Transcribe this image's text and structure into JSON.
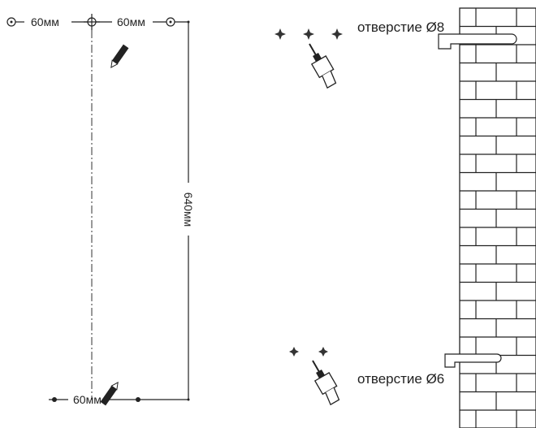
{
  "dimensions": {
    "top_left": "60мм",
    "top_right": "60мм",
    "height": "640мм",
    "bottom": "60мм"
  },
  "labels": {
    "hole_top": "отверстие Ø8",
    "hole_bottom": "отверстие Ø6"
  }
}
